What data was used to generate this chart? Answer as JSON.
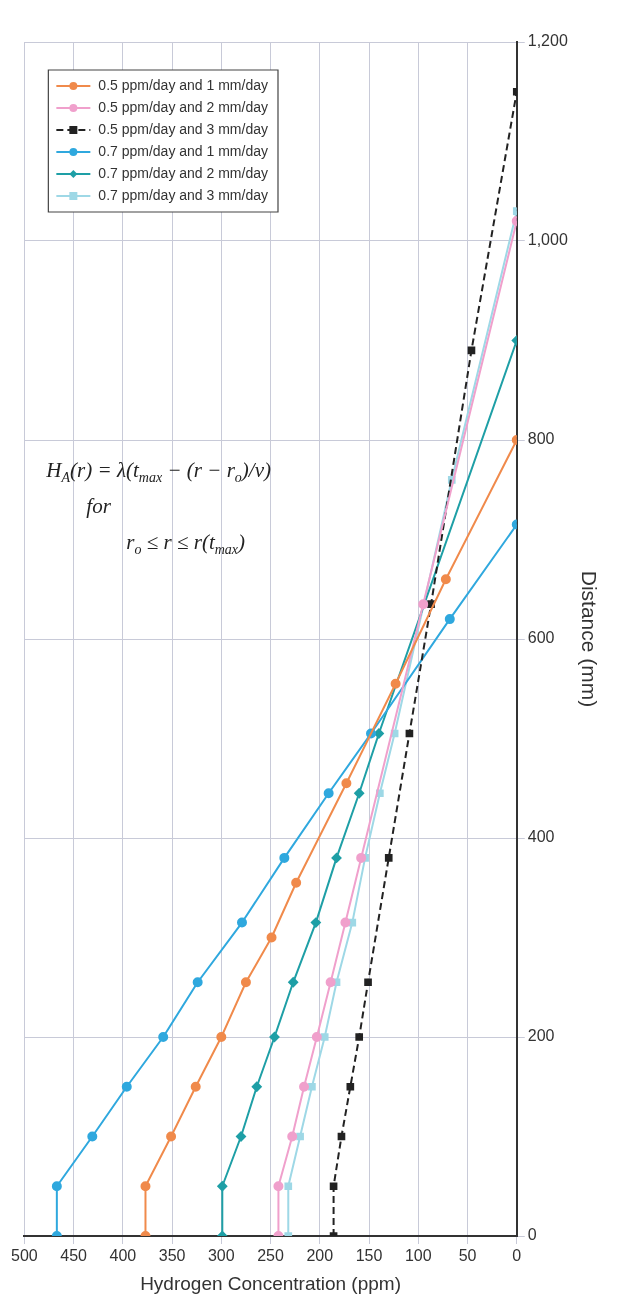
{
  "chart_data": {
    "type": "line",
    "xlabel": "Hydrogen Concentration (ppm)",
    "ylabel": "Distance (mm)",
    "xlim": [
      500,
      0
    ],
    "xticks": [
      500,
      450,
      400,
      350,
      300,
      250,
      200,
      150,
      100,
      50,
      0
    ],
    "ylim": [
      0,
      1200
    ],
    "yticks": [
      0,
      200,
      400,
      600,
      800,
      {
        "value": 1000,
        "label": "1,000"
      },
      {
        "value": 1200,
        "label": "1,200"
      }
    ],
    "grid": true,
    "legend": "top left",
    "annotations": [
      "H$_{A}$(r) = λ(t$_{max}$ − (r − r$_{o}$)/v)    for    r$_{o}$ ≤ r ≤ r(t$_{max}$)"
    ],
    "series": [
      {
        "name": "0.5 ppm/day and 1 mm/day",
        "color": "#f08a4b",
        "marker": "circle",
        "line_style": "solid",
        "x": [
          377,
          377,
          351,
          326,
          300,
          275,
          249,
          224,
          173,
          123,
          72,
          0
        ],
        "values": [
          0,
          50,
          100,
          150,
          200,
          255,
          300,
          355,
          455,
          555,
          660,
          800
        ]
      },
      {
        "name": "0.5 ppm/day and 2 mm/day",
        "color": "#f0a0cc",
        "marker": "circle",
        "line_style": "solid",
        "x": [
          242,
          242,
          228,
          216,
          203,
          189,
          174,
          158,
          95,
          0
        ],
        "values": [
          0,
          50,
          100,
          150,
          200,
          255,
          315,
          380,
          635,
          1020
        ]
      },
      {
        "name": "0.5 ppm/day and 3 mm/day",
        "color": "#222222",
        "marker": "square",
        "line_style": "dashed",
        "x": [
          186,
          186,
          178,
          169,
          160,
          151,
          130,
          109,
          87,
          46,
          0
        ],
        "values": [
          0,
          50,
          100,
          150,
          200,
          255,
          380,
          505,
          635,
          890,
          1150
        ]
      },
      {
        "name": "0.7 ppm/day and 1 mm/day",
        "color": "#2fa8de",
        "marker": "circle",
        "line_style": "solid",
        "x": [
          467,
          467,
          431,
          396,
          359,
          324,
          279,
          236,
          191,
          148,
          68,
          0
        ],
        "values": [
          0,
          50,
          100,
          150,
          200,
          255,
          315,
          380,
          445,
          505,
          620,
          715
        ]
      },
      {
        "name": "0.7 ppm/day and 2 mm/day",
        "color": "#1e9fa6",
        "marker": "diamond",
        "line_style": "solid",
        "x": [
          299,
          299,
          280,
          264,
          246,
          227,
          204,
          183,
          160,
          140,
          0
        ],
        "values": [
          0,
          50,
          100,
          150,
          200,
          255,
          315,
          380,
          445,
          505,
          900
        ]
      },
      {
        "name": "0.7 ppm/day and 3 mm/day",
        "color": "#9ed8e6",
        "marker": "square",
        "line_style": "solid",
        "x": [
          232,
          232,
          220,
          208,
          195,
          183,
          167,
          154,
          139,
          124,
          66,
          0
        ],
        "values": [
          0,
          50,
          100,
          150,
          200,
          255,
          315,
          380,
          445,
          505,
          760,
          1030
        ]
      }
    ]
  }
}
